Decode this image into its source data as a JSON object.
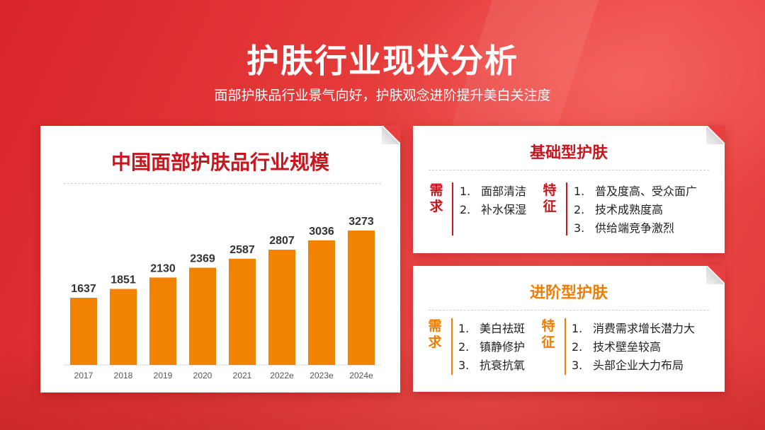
{
  "header": {
    "title": "护肤行业现状分析",
    "subtitle": "面部护肤品行业景气向好，护肤观念进阶提升美白关注度"
  },
  "colors": {
    "primary_red": "#c8161e",
    "accent_orange": "#ee7d06",
    "bar_color": "#f28300"
  },
  "chart_data": {
    "type": "bar",
    "title": "中国面部护肤品行业规模",
    "categories": [
      "2017",
      "2018",
      "2019",
      "2020",
      "2021",
      "2022e",
      "2023e",
      "2024e"
    ],
    "values": [
      1637,
      1851,
      2130,
      2369,
      2587,
      2807,
      3036,
      3273
    ],
    "value_labels": [
      "1637",
      "1851",
      "2130",
      "2369",
      "2587",
      "2807",
      "3036",
      "3273"
    ],
    "xlabel": "",
    "ylabel": "",
    "ylim": [
      0,
      3273
    ],
    "grid": false,
    "legend": "none"
  },
  "basic": {
    "title": "基础型护肤",
    "demand_label": [
      "需",
      "求"
    ],
    "demand_items": [
      {
        "num": "1.",
        "text": "面部清洁"
      },
      {
        "num": "2.",
        "text": "补水保湿"
      }
    ],
    "feature_label": [
      "特",
      "征"
    ],
    "feature_items": [
      {
        "num": "1.",
        "text": "普及度高、受众面广"
      },
      {
        "num": "2.",
        "text": "技术成熟度高"
      },
      {
        "num": "3.",
        "text": "供给端竞争激烈"
      }
    ]
  },
  "advanced": {
    "title": "进阶型护肤",
    "demand_label": [
      "需",
      "求"
    ],
    "demand_items": [
      {
        "num": "1.",
        "text": "美白祛斑"
      },
      {
        "num": "2.",
        "text": "镇静修护"
      },
      {
        "num": "3.",
        "text": "抗衰抗氧"
      }
    ],
    "feature_label": [
      "特",
      "征"
    ],
    "feature_items": [
      {
        "num": "1.",
        "text": "消费需求增长潜力大"
      },
      {
        "num": "2.",
        "text": "技术壁垒较高"
      },
      {
        "num": "3.",
        "text": "头部企业大力布局"
      }
    ]
  }
}
